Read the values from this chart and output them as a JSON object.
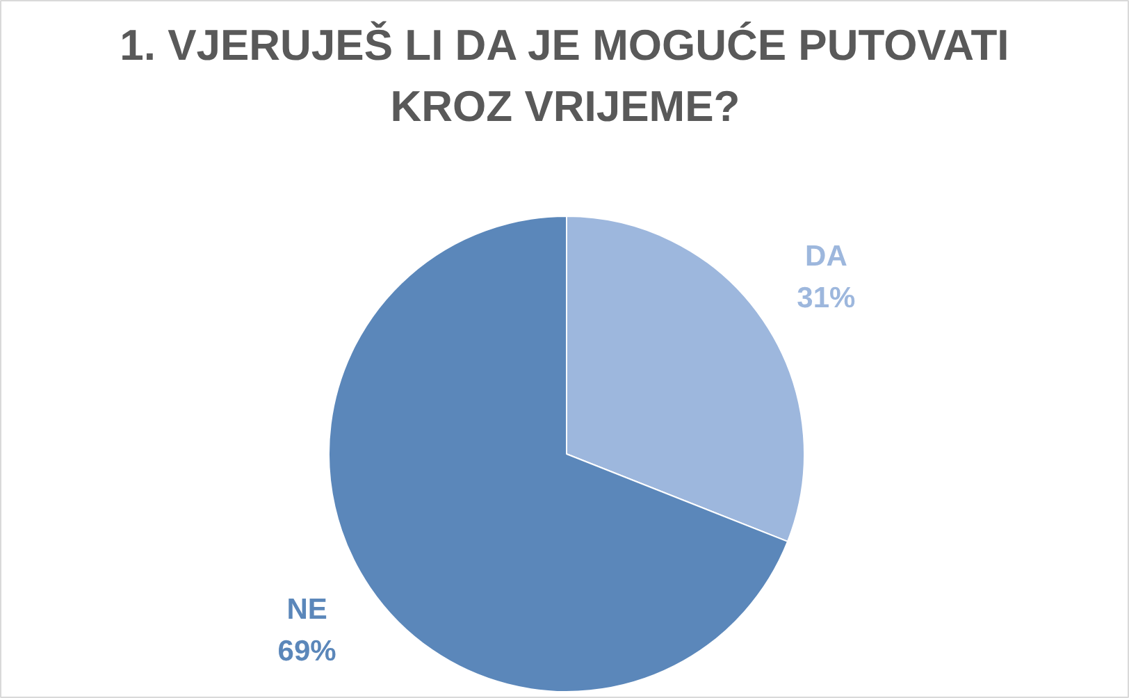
{
  "chart_data": {
    "type": "pie",
    "title": "1. VJERUJEŠ LI DA JE MOGUĆE PUTOVATI KROZ VRIJEME?",
    "categories": [
      "DA",
      "NE"
    ],
    "values": [
      31,
      69
    ],
    "colors": [
      "#9db7dd",
      "#5b87ba"
    ],
    "value_labels": [
      "31%",
      "69%"
    ]
  }
}
